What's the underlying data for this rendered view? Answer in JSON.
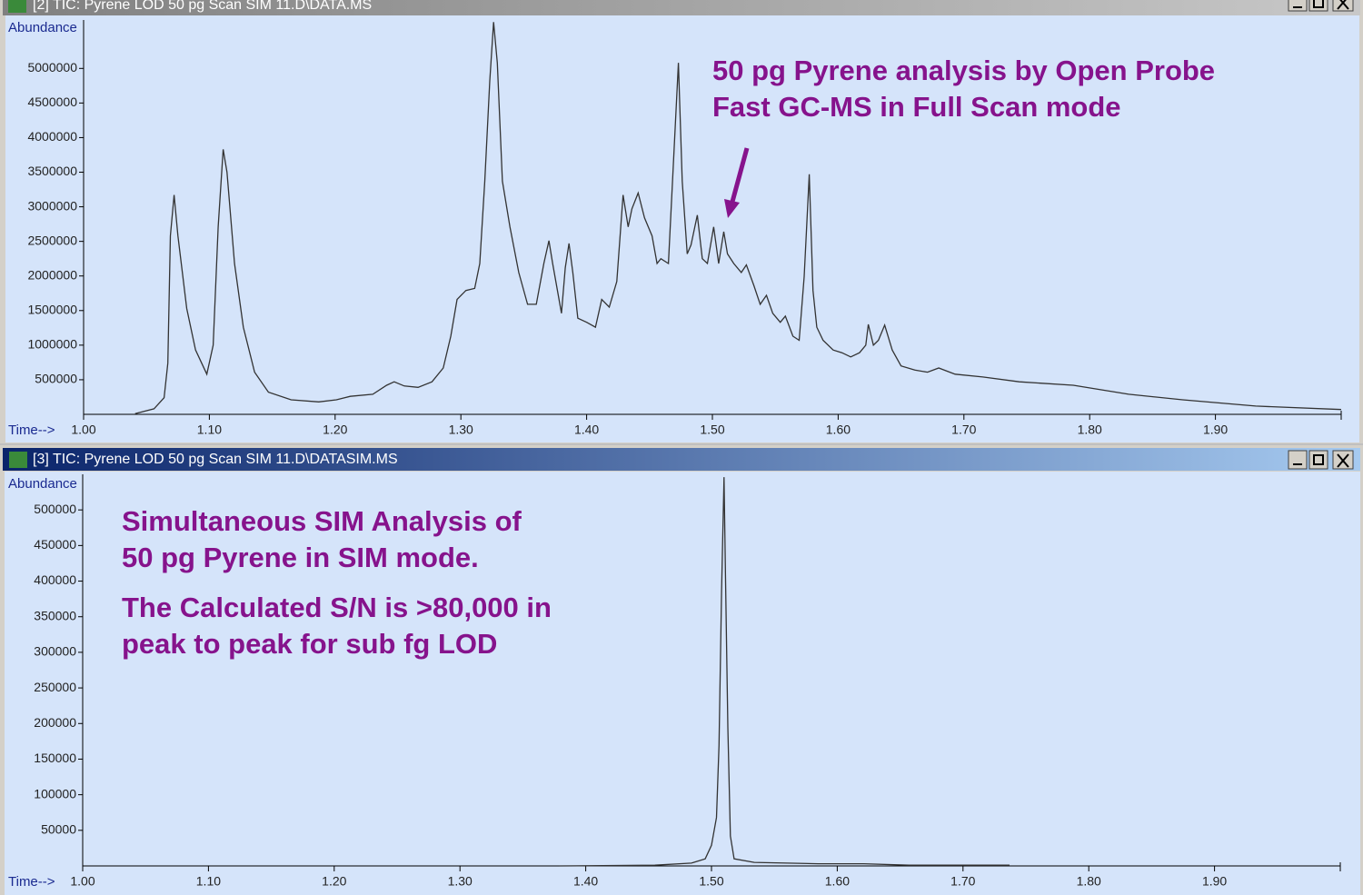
{
  "chart_data": [
    {
      "type": "line",
      "window_title": "[2] TIC: Pyrene LOD 50 pg Scan SIM 11.D\\DATA.MS",
      "ylabel": "Abundance",
      "xlabel": "Time-->",
      "annotations": [
        "50 pg Pyrene analysis by Open Probe",
        "Fast GC-MS in Full Scan mode"
      ],
      "color": "#333333",
      "xlim": [
        1.0,
        2.0
      ],
      "xticks": [
        {
          "value": 1.0,
          "label": "1.00"
        },
        {
          "value": 1.1,
          "label": "1.10"
        },
        {
          "value": 1.2,
          "label": "1.20"
        },
        {
          "value": 1.3,
          "label": "1.30"
        },
        {
          "value": 1.4,
          "label": "1.40"
        },
        {
          "value": 1.5,
          "label": "1.50"
        },
        {
          "value": 1.6,
          "label": "1.60"
        },
        {
          "value": 1.7,
          "label": "1.70"
        },
        {
          "value": 1.8,
          "label": "1.80"
        },
        {
          "value": 1.9,
          "label": "1.90"
        }
      ],
      "ylim": [
        0,
        5700000
      ],
      "yticks": [
        500000,
        1000000,
        1500000,
        2000000,
        2500000,
        3000000,
        3500000,
        4000000,
        4500000,
        5000000
      ],
      "x": [
        1.041,
        1.056,
        1.064,
        1.067,
        1.069,
        1.072,
        1.075,
        1.082,
        1.089,
        1.098,
        1.103,
        1.107,
        1.111,
        1.114,
        1.12,
        1.127,
        1.136,
        1.147,
        1.165,
        1.187,
        1.201,
        1.212,
        1.23,
        1.241,
        1.247,
        1.255,
        1.266,
        1.277,
        1.286,
        1.292,
        1.297,
        1.304,
        1.311,
        1.315,
        1.319,
        1.323,
        1.326,
        1.329,
        1.333,
        1.339,
        1.346,
        1.353,
        1.36,
        1.366,
        1.37,
        1.373,
        1.38,
        1.383,
        1.386,
        1.389,
        1.393,
        1.4,
        1.407,
        1.412,
        1.418,
        1.424,
        1.429,
        1.433,
        1.436,
        1.441,
        1.446,
        1.452,
        1.456,
        1.459,
        1.465,
        1.469,
        1.473,
        1.476,
        1.48,
        1.483,
        1.488,
        1.492,
        1.496,
        1.501,
        1.505,
        1.509,
        1.512,
        1.517,
        1.523,
        1.527,
        1.533,
        1.538,
        1.543,
        1.548,
        1.554,
        1.558,
        1.564,
        1.569,
        1.573,
        1.577,
        1.58,
        1.583,
        1.588,
        1.596,
        1.603,
        1.61,
        1.617,
        1.622,
        1.624,
        1.628,
        1.632,
        1.637,
        1.643,
        1.65,
        1.661,
        1.671,
        1.68,
        1.693,
        1.715,
        1.744,
        1.787,
        1.831,
        1.874,
        1.932,
        2.0
      ],
      "values": [
        10000,
        80000,
        240000,
        740000,
        2580000,
        3170000,
        2580000,
        1530000,
        930000,
        580000,
        1000000,
        2710000,
        3830000,
        3500000,
        2180000,
        1260000,
        610000,
        320000,
        210000,
        180000,
        210000,
        260000,
        290000,
        420000,
        470000,
        410000,
        390000,
        470000,
        670000,
        1130000,
        1660000,
        1790000,
        1820000,
        2180000,
        3370000,
        4820000,
        5670000,
        5080000,
        3370000,
        2710000,
        2050000,
        1590000,
        1590000,
        2180000,
        2510000,
        2180000,
        1460000,
        2120000,
        2470000,
        2050000,
        1390000,
        1330000,
        1260000,
        1660000,
        1550000,
        1920000,
        3170000,
        2710000,
        2970000,
        3200000,
        2840000,
        2580000,
        2180000,
        2250000,
        2180000,
        3630000,
        5080000,
        3370000,
        2320000,
        2450000,
        2880000,
        2250000,
        2180000,
        2710000,
        2180000,
        2640000,
        2320000,
        2180000,
        2050000,
        2160000,
        1860000,
        1590000,
        1720000,
        1460000,
        1330000,
        1420000,
        1130000,
        1070000,
        1990000,
        3470000,
        1790000,
        1260000,
        1070000,
        930000,
        890000,
        830000,
        890000,
        1000000,
        1300000,
        1000000,
        1070000,
        1290000,
        930000,
        700000,
        640000,
        610000,
        670000,
        580000,
        540000,
        470000,
        420000,
        290000,
        210000,
        120000,
        70000
      ]
    },
    {
      "type": "line",
      "window_title": "[3] TIC: Pyrene LOD 50 pg Scan SIM 11.D\\DATASIM.MS",
      "ylabel": "Abundance",
      "xlabel": "Time-->",
      "annotations": [
        "Simultaneous SIM Analysis of",
        "50 pg Pyrene in SIM mode.",
        "The Calculated S/N is >80,000 in",
        "peak to peak for sub fg LOD"
      ],
      "color": "#333333",
      "xlim": [
        1.0,
        2.0
      ],
      "xticks": [
        {
          "value": 1.0,
          "label": "1.00"
        },
        {
          "value": 1.1,
          "label": "1.10"
        },
        {
          "value": 1.2,
          "label": "1.20"
        },
        {
          "value": 1.3,
          "label": "1.30"
        },
        {
          "value": 1.4,
          "label": "1.40"
        },
        {
          "value": 1.5,
          "label": "1.50"
        },
        {
          "value": 1.6,
          "label": "1.60"
        },
        {
          "value": 1.7,
          "label": "1.70"
        },
        {
          "value": 1.8,
          "label": "1.80"
        },
        {
          "value": 1.9,
          "label": "1.90"
        }
      ],
      "ylim": [
        0,
        550000
      ],
      "yticks": [
        50000,
        100000,
        150000,
        200000,
        250000,
        300000,
        350000,
        400000,
        450000,
        500000
      ],
      "x": [
        1.379,
        1.455,
        1.484,
        1.495,
        1.5,
        1.504,
        1.506,
        1.508,
        1.51,
        1.511,
        1.513,
        1.515,
        1.518,
        1.534,
        1.585,
        1.621,
        1.657,
        1.737
      ],
      "values": [
        0,
        1000,
        4000,
        10000,
        29000,
        68000,
        170000,
        386000,
        546000,
        425000,
        195000,
        42000,
        10000,
        5000,
        3000,
        3000,
        1000,
        1000
      ]
    }
  ]
}
